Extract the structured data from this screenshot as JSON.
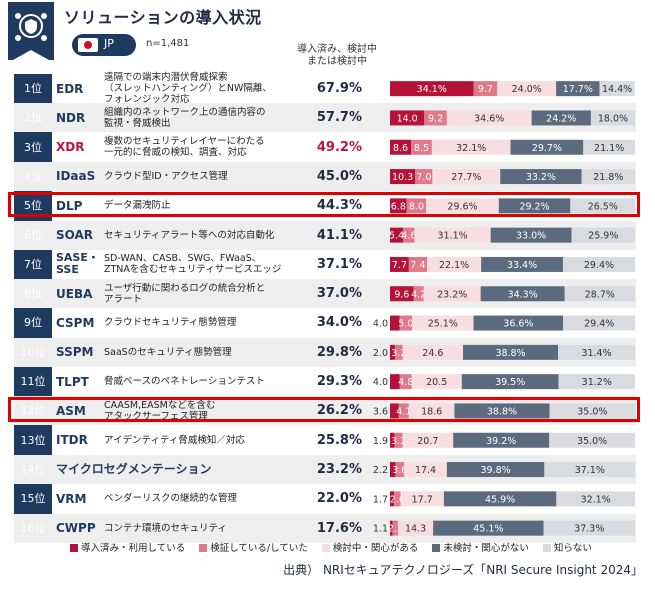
{
  "title": "ソリューションの導入状況",
  "country_code": "JP",
  "sample_size": "n=1,481",
  "column_header": [
    "導入済み、検討中",
    "または検討中"
  ],
  "source": "出典） NRIセキュアテクノロジーズ「NRI Secure Insight 2024」",
  "colors": {
    "navy": "#1f3a5f",
    "implemented": "#b5123a",
    "verifying": "#e07a8a",
    "considering": "#f8dde1",
    "not_considering": "#5b6b7d",
    "unknown": "#d9dbe0",
    "highlight": "#e00000"
  },
  "rows": [
    {
      "rank": "1位",
      "code": "EDR",
      "desc": [
        "遠隔での端末内潜伏脅威探索",
        "（スレットハンティング）とNW隔離、",
        "フォレンジック対応"
      ],
      "pct": "67.9%"
    },
    {
      "rank": "2位",
      "code": "NDR",
      "desc": [
        "組織内のネットワーク上の通信内容の",
        "監視・脅威検出"
      ],
      "pct": "57.7%"
    },
    {
      "rank": "3位",
      "code": "XDR",
      "desc": [
        "複数のセキュリティレイヤーにわたる",
        "一元的に脅威の検知、調査、対応"
      ],
      "pct": "49.2%"
    },
    {
      "rank": "4位",
      "code": "IDaaS",
      "desc": [
        "クラウド型ID・アクセス管理"
      ],
      "pct": "45.0%"
    },
    {
      "rank": "5位",
      "code": "DLP",
      "desc": [
        "データ漏洩防止"
      ],
      "pct": "44.3%"
    },
    {
      "rank": "6位",
      "code": "SOAR",
      "desc": [
        "セキュリティアラート等への対応自動化"
      ],
      "pct": "41.1%"
    },
    {
      "rank": "7位",
      "code": "SASE・SSE",
      "desc": [
        "SD-WAN、CASB、SWG、FWaaS、",
        "ZTNAを含むセキュリティサービスエッジ"
      ],
      "pct": "37.1%"
    },
    {
      "rank": "8位",
      "code": "UEBA",
      "desc": [
        "ユーザ行動に関わるログの統合分析と",
        "アラート"
      ],
      "pct": "37.0%"
    },
    {
      "rank": "9位",
      "code": "CSPM",
      "desc": [
        "クラウドセキュリティ態勢管理"
      ],
      "pct": "34.0%"
    },
    {
      "rank": "10位",
      "code": "SSPM",
      "desc": [
        "SaaSのセキュリティ態勢管理"
      ],
      "pct": "29.8%"
    },
    {
      "rank": "11位",
      "code": "TLPT",
      "desc": [
        "脅威ベースのペネトレーションテスト"
      ],
      "pct": "29.3%"
    },
    {
      "rank": "12位",
      "code": "ASM",
      "desc": [
        "CAASM,EASMなどを含む",
        "アタックサーフェス管理"
      ],
      "pct": "26.2%"
    },
    {
      "rank": "13位",
      "code": "ITDR",
      "desc": [
        "アイデンティティ脅威検知／対応"
      ],
      "pct": "25.8%"
    },
    {
      "rank": "14位",
      "code": "マイクロセグメンテーション",
      "desc": [],
      "pct": "23.2%"
    },
    {
      "rank": "15位",
      "code": "VRM",
      "desc": [
        "ベンダーリスクの継続的な管理"
      ],
      "pct": "22.0%"
    },
    {
      "rank": "16位",
      "code": "CWPP",
      "desc": [
        "コンテナ環境のセキュリティ"
      ],
      "pct": "17.6%"
    }
  ],
  "chart_data": {
    "type": "bar",
    "stacked": true,
    "orientation": "horizontal",
    "title": "ソリューションの導入状況",
    "xlim": [
      0,
      100
    ],
    "categories": [
      "EDR",
      "NDR",
      "XDR",
      "IDaaS",
      "DLP",
      "SOAR",
      "SASE・SSE",
      "UEBA",
      "CSPM",
      "SSPM",
      "TLPT",
      "ASM",
      "ITDR",
      "マイクロセグメンテーション",
      "VRM",
      "CWPP"
    ],
    "series": [
      {
        "name": "導入済み・利用している",
        "color": "#b5123a",
        "values": [
          34.1,
          14.0,
          8.6,
          10.3,
          6.8,
          5.4,
          7.7,
          9.6,
          4.0,
          2.0,
          4.0,
          3.6,
          1.9,
          2.2,
          1.7,
          1.1
        ]
      },
      {
        "name": "検証している/していた",
        "color": "#e07a8a",
        "values": [
          9.7,
          9.2,
          8.5,
          7.0,
          8.0,
          4.6,
          7.4,
          4.2,
          5.0,
          3.2,
          4.8,
          4.1,
          3.2,
          3.6,
          2.6,
          2.2
        ]
      },
      {
        "name": "検討中・関心がある",
        "color": "#f8dde1",
        "values": [
          24.0,
          34.6,
          32.1,
          27.7,
          29.6,
          31.1,
          22.1,
          23.2,
          25.1,
          24.6,
          20.5,
          18.6,
          20.7,
          17.4,
          17.7,
          14.3
        ]
      },
      {
        "name": "未検討・関心がない",
        "color": "#5b6b7d",
        "values": [
          17.7,
          24.2,
          29.7,
          33.2,
          29.2,
          33.0,
          33.4,
          34.3,
          36.6,
          38.8,
          39.5,
          38.8,
          39.2,
          39.8,
          45.9,
          45.1
        ]
      },
      {
        "name": "知らない",
        "color": "#d9dbe0",
        "values": [
          14.4,
          18.0,
          21.1,
          21.8,
          26.5,
          25.9,
          29.4,
          28.7,
          29.4,
          31.4,
          31.2,
          35.0,
          35.0,
          37.1,
          32.1,
          37.3
        ]
      }
    ],
    "labels": [
      [
        "34.1%",
        "9.7",
        "24.0%",
        "17.7%",
        "14.4%"
      ],
      [
        "14.0",
        "9.2",
        "34.6%",
        "24.2%",
        "18.0%"
      ],
      [
        "8.6",
        "8.5",
        "32.1%",
        "29.7%",
        "21.1%"
      ],
      [
        "10.3",
        "7.0",
        "27.7%",
        "33.2%",
        "21.8%"
      ],
      [
        "6.8",
        "8.0",
        "29.6%",
        "29.2%",
        "26.5%"
      ],
      [
        "5.4",
        "4.6",
        "31.1%",
        "33.0%",
        "25.9%"
      ],
      [
        "7.7",
        "7.4",
        "22.1%",
        "33.4%",
        "29.4%"
      ],
      [
        "9.6",
        "4.2",
        "23.2%",
        "34.3%",
        "28.7%"
      ],
      [
        "4.0",
        "5.0",
        "25.1%",
        "36.6%",
        "29.4%"
      ],
      [
        "2.0",
        "3.2",
        "24.6",
        "38.8%",
        "31.4%"
      ],
      [
        "4.0",
        "4.8",
        "20.5",
        "39.5%",
        "31.2%"
      ],
      [
        "3.6",
        "4.1",
        "18.6",
        "38.8%",
        "35.0%"
      ],
      [
        "1.9",
        "3.2",
        "20.7",
        "39.2%",
        "35.0%"
      ],
      [
        "2.2",
        "3.6",
        "17.4",
        "39.8%",
        "37.1%"
      ],
      [
        "1.7",
        "2.6",
        "17.7",
        "45.9%",
        "32.1%"
      ],
      [
        "1.1",
        "2.2",
        "14.3",
        "45.1%",
        "37.3%"
      ]
    ],
    "highlighted": [
      "DLP",
      "ASM"
    ]
  }
}
